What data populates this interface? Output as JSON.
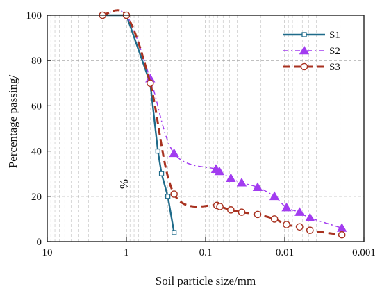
{
  "chart_data": {
    "type": "line",
    "xlabel": "Soil particle size/mm",
    "ylabel": "Percentage passing/",
    "ylabel_unit": "%",
    "x_scale": "log",
    "x_reversed": true,
    "xlim": [
      10,
      0.001
    ],
    "ylim": [
      0,
      100
    ],
    "x_ticks": [
      "10",
      "1",
      "0.1",
      "0.01",
      "0.001"
    ],
    "y_ticks": [
      "0",
      "20",
      "40",
      "60",
      "80",
      "100"
    ],
    "grid": true,
    "legend_position": "top-right",
    "series": [
      {
        "name": "S1",
        "color": "#1f6b8a",
        "line_style": "solid",
        "marker": "square",
        "points": [
          {
            "x": 2.0,
            "y": 100
          },
          {
            "x": 1.0,
            "y": 100
          },
          {
            "x": 0.5,
            "y": 70
          },
          {
            "x": 0.4,
            "y": 40
          },
          {
            "x": 0.36,
            "y": 30
          },
          {
            "x": 0.3,
            "y": 20
          },
          {
            "x": 0.25,
            "y": 4
          }
        ]
      },
      {
        "name": "S2",
        "color": "#a23cf0",
        "line_style": "dashdot",
        "marker": "triangle",
        "points": [
          {
            "x": 2.0,
            "y": 100
          },
          {
            "x": 1.0,
            "y": 100
          },
          {
            "x": 0.5,
            "y": 72
          },
          {
            "x": 0.25,
            "y": 39
          },
          {
            "x": 0.074,
            "y": 32
          },
          {
            "x": 0.067,
            "y": 31
          },
          {
            "x": 0.048,
            "y": 28
          },
          {
            "x": 0.035,
            "y": 26
          },
          {
            "x": 0.022,
            "y": 24
          },
          {
            "x": 0.0135,
            "y": 20
          },
          {
            "x": 0.0095,
            "y": 15
          },
          {
            "x": 0.0065,
            "y": 13
          },
          {
            "x": 0.0048,
            "y": 10.5
          },
          {
            "x": 0.0019,
            "y": 6
          }
        ]
      },
      {
        "name": "S3",
        "color": "#a83220",
        "line_style": "dashed",
        "marker": "circle",
        "points": [
          {
            "x": 2.0,
            "y": 100
          },
          {
            "x": 1.0,
            "y": 100
          },
          {
            "x": 0.5,
            "y": 70
          },
          {
            "x": 0.25,
            "y": 21
          },
          {
            "x": 0.072,
            "y": 16
          },
          {
            "x": 0.066,
            "y": 15.5
          },
          {
            "x": 0.048,
            "y": 14
          },
          {
            "x": 0.035,
            "y": 13
          },
          {
            "x": 0.022,
            "y": 12
          },
          {
            "x": 0.0135,
            "y": 10
          },
          {
            "x": 0.0095,
            "y": 7.5
          },
          {
            "x": 0.0065,
            "y": 6.5
          },
          {
            "x": 0.0048,
            "y": 5
          },
          {
            "x": 0.0019,
            "y": 3
          }
        ]
      }
    ]
  }
}
